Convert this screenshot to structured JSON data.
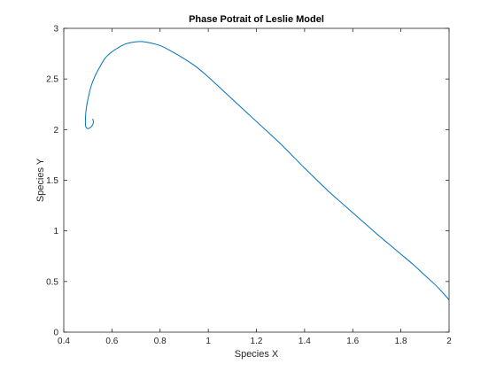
{
  "chart_data": {
    "type": "line",
    "title": "Phase Potrait of Leslie Model",
    "xlabel": "Species X",
    "ylabel": "Species Y",
    "xlim": [
      0.4,
      2
    ],
    "ylim": [
      0,
      3
    ],
    "xticks": [
      0.4,
      0.6,
      0.8,
      1,
      1.2,
      1.4,
      1.6,
      1.8,
      2
    ],
    "xtick_labels": [
      "0.4",
      "0.6",
      "0.8",
      "1",
      "1.2",
      "1.4",
      "1.6",
      "1.8",
      "2"
    ],
    "yticks": [
      0,
      0.5,
      1,
      1.5,
      2,
      2.5,
      3
    ],
    "ytick_labels": [
      "0",
      "0.5",
      "1",
      "1.5",
      "2",
      "2.5",
      "3"
    ],
    "grid": false,
    "legend": "none",
    "series": [
      {
        "color": "#0072BD",
        "x": [
          2.0,
          1.95,
          1.9,
          1.85,
          1.8,
          1.75,
          1.7,
          1.6,
          1.5,
          1.4,
          1.3,
          1.2,
          1.1,
          1.0,
          0.95,
          0.9,
          0.85,
          0.8,
          0.75,
          0.72,
          0.68,
          0.65,
          0.62,
          0.59,
          0.57,
          0.55,
          0.53,
          0.515,
          0.505,
          0.497,
          0.492,
          0.49,
          0.49,
          0.493,
          0.5,
          0.51,
          0.518,
          0.522,
          0.523,
          0.521,
          0.518
        ],
        "y": [
          0.32,
          0.45,
          0.56,
          0.67,
          0.77,
          0.87,
          0.97,
          1.18,
          1.39,
          1.62,
          1.86,
          2.08,
          2.3,
          2.52,
          2.62,
          2.7,
          2.77,
          2.83,
          2.86,
          2.87,
          2.86,
          2.84,
          2.8,
          2.75,
          2.7,
          2.62,
          2.53,
          2.44,
          2.35,
          2.26,
          2.18,
          2.1,
          2.05,
          2.02,
          2.01,
          2.02,
          2.04,
          2.06,
          2.08,
          2.1,
          2.1
        ]
      }
    ]
  }
}
